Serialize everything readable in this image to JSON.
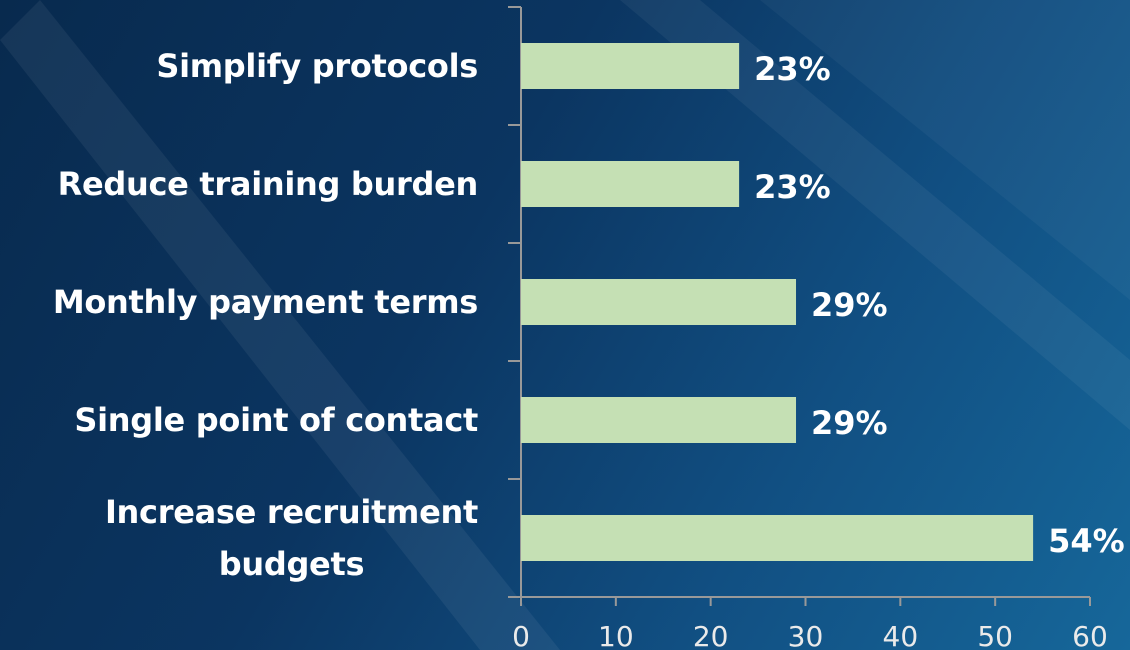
{
  "chart_data": {
    "type": "bar",
    "orientation": "horizontal",
    "categories": [
      "Simplify protocols",
      "Reduce training burden",
      "Monthly payment terms",
      "Single point of contact",
      "Increase recruitment\nbudgets"
    ],
    "values": [
      23,
      23,
      29,
      29,
      54
    ],
    "value_labels": [
      "23%",
      "23%",
      "29%",
      "29%",
      "54%"
    ],
    "color": "#c5e0b4",
    "xlim": [
      0,
      60
    ],
    "xticks": [
      0,
      10,
      20,
      30,
      40,
      50,
      60
    ],
    "grid": false
  }
}
